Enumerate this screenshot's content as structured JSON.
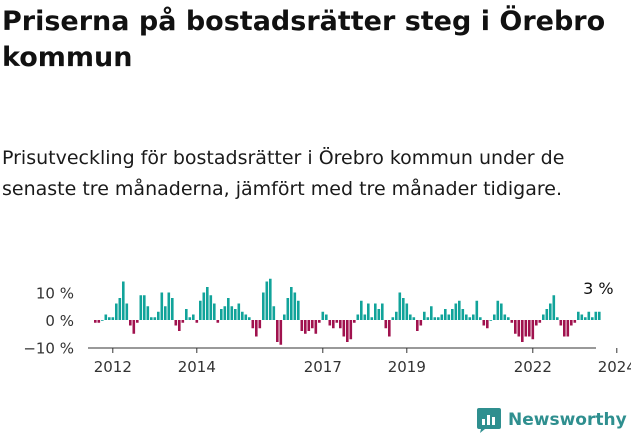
{
  "title": "Priserna på bostadsrätter steg i Örebro kommun",
  "subtitle": "Prisutveckling för bostadsrätter i Örebro kommun under de senaste tre månaderna, jämfört med tre månader tidigare.",
  "brand": "Newsworthy",
  "colors": {
    "positive": "#11a39a",
    "negative": "#a0124e",
    "axis": "#333333",
    "brand": "#2f8f8f"
  },
  "chart_data": {
    "type": "bar",
    "title": "",
    "xlabel": "",
    "ylabel": "",
    "x_start": "2011-08",
    "x_step": "month",
    "ylim": [
      -10,
      14
    ],
    "y_ticks": [
      10,
      0,
      -10
    ],
    "y_tick_labels": [
      "10 %",
      "0 %",
      "−10 %"
    ],
    "x_ticks": [
      2012,
      2014,
      2017,
      2019,
      2022,
      2024
    ],
    "x_tick_labels": [
      "2012",
      "2014",
      "2017",
      "2019",
      "2022",
      "2024"
    ],
    "annotation": "3 %",
    "grid": false,
    "legend": "none",
    "values": [
      -1,
      -1,
      0,
      2,
      1,
      1,
      6,
      8,
      14,
      6,
      -2,
      -5,
      -1,
      9,
      9,
      5,
      1,
      1,
      3,
      10,
      5,
      10,
      8,
      -2,
      -4,
      -1,
      4,
      1,
      2,
      -1,
      7,
      10,
      12,
      9,
      6,
      -1,
      4,
      5,
      8,
      5,
      4,
      6,
      3,
      2,
      1,
      -3,
      -6,
      -3,
      10,
      14,
      15,
      5,
      -8,
      -9,
      2,
      8,
      12,
      10,
      7,
      -4,
      -5,
      -4,
      -3,
      -5,
      -1,
      3,
      2,
      -2,
      -3,
      -1,
      -3,
      -6,
      -8,
      -7,
      -1,
      2,
      7,
      2,
      6,
      1,
      6,
      4,
      6,
      -3,
      -6,
      1,
      3,
      10,
      8,
      6,
      2,
      1,
      -4,
      -2,
      3,
      1,
      5,
      1,
      1,
      2,
      4,
      2,
      4,
      6,
      7,
      4,
      2,
      1,
      2,
      7,
      1,
      -2,
      -3,
      0,
      2,
      7,
      6,
      2,
      1,
      -1,
      -5,
      -6,
      -8,
      -6,
      -6,
      -7,
      -2,
      -1,
      2,
      4,
      6,
      9,
      1,
      -2,
      -6,
      -6,
      -2,
      -1,
      3,
      2,
      1,
      3,
      1,
      3,
      3
    ]
  }
}
